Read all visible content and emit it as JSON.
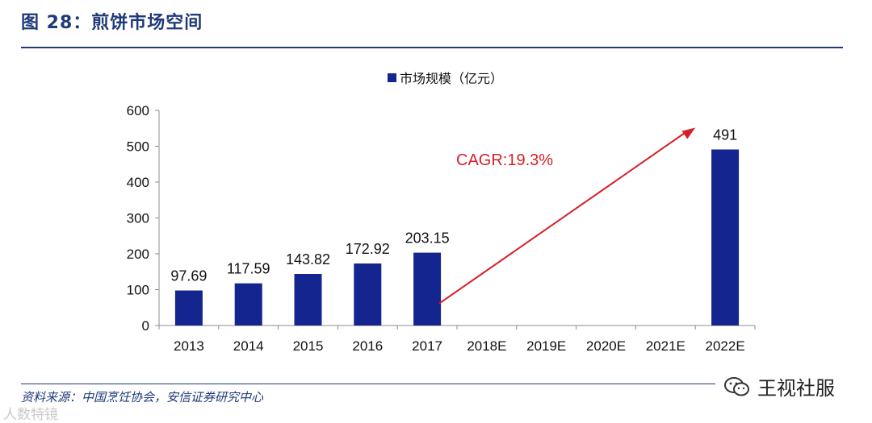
{
  "figure": {
    "title": "图 28：煎饼市场空间",
    "source": "资料来源：中国烹饪协会，安信证券研究中心"
  },
  "watermarks": {
    "left": "人数特镜",
    "right": "王视社服",
    "right_icon": "wechat-icon"
  },
  "colors": {
    "bar": "#14258f",
    "title": "#1f3a78",
    "cagr": "#d61f26"
  },
  "chart_data": {
    "type": "bar",
    "categories": [
      "2013",
      "2014",
      "2015",
      "2016",
      "2017",
      "2018E",
      "2019E",
      "2020E",
      "2021E",
      "2022E"
    ],
    "series": [
      {
        "name": "市场规模（亿元）",
        "values": [
          97.69,
          117.59,
          143.82,
          172.92,
          203.15,
          null,
          null,
          null,
          null,
          491
        ],
        "labels": [
          "97.69",
          "117.59",
          "143.82",
          "172.92",
          "203.15",
          "",
          "",
          "",
          "",
          "491"
        ]
      }
    ],
    "ylim": [
      0,
      600
    ],
    "yticks": [
      0,
      100,
      200,
      300,
      400,
      500,
      600
    ],
    "legend_position": "top-center",
    "grid": false,
    "annotation": {
      "text": "CAGR:19.3%",
      "from_category": "2017",
      "to_category": "2022E"
    }
  }
}
